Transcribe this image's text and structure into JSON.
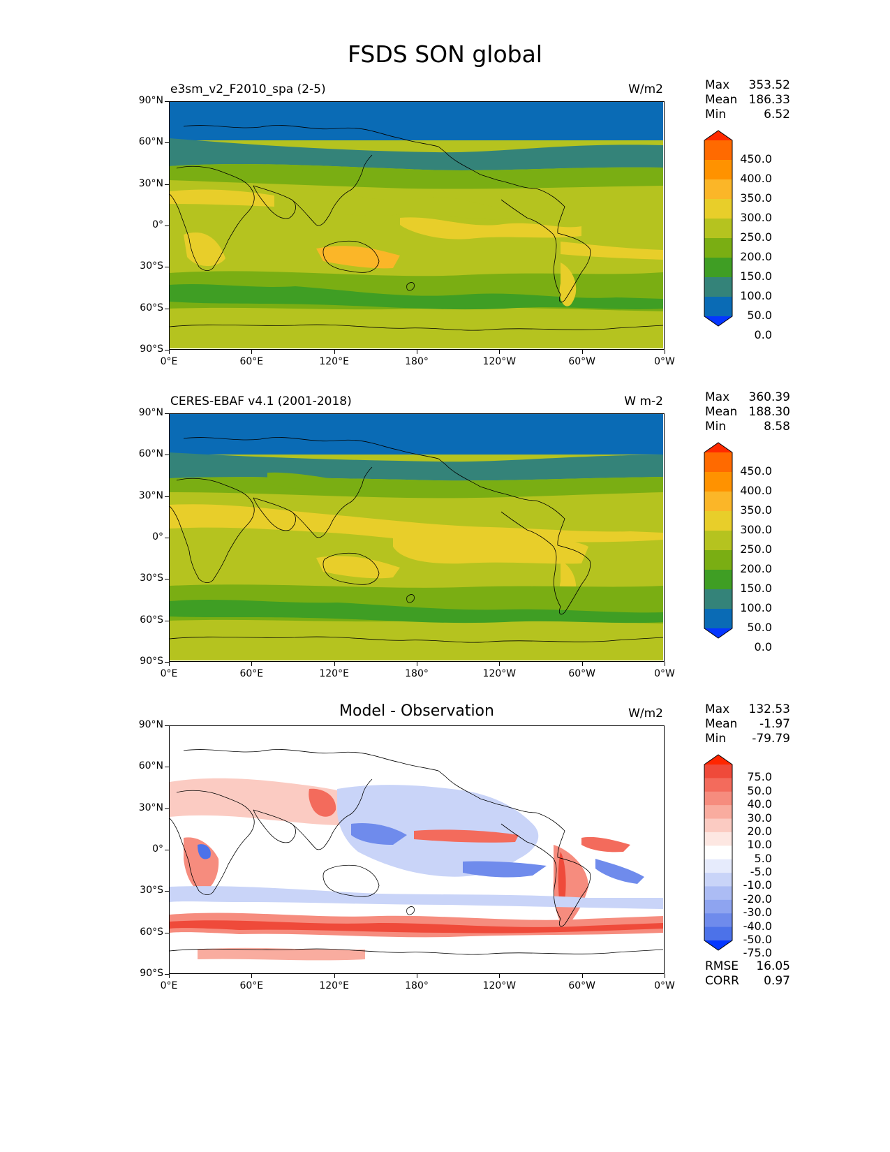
{
  "title": "FSDS SON global",
  "panels": [
    {
      "left": "e3sm_v2_F2010_spa (2-5)",
      "right": "W/m2",
      "center": "",
      "stats": [
        [
          "Max",
          "353.52"
        ],
        [
          "Mean",
          "186.33"
        ],
        [
          "Min",
          "6.52"
        ]
      ]
    },
    {
      "left": "CERES-EBAF v4.1 (2001-2018)",
      "right": "W m-2",
      "center": "",
      "stats": [
        [
          "Max",
          "360.39"
        ],
        [
          "Mean",
          "188.30"
        ],
        [
          "Min",
          "8.58"
        ]
      ]
    },
    {
      "left": "",
      "right": "W/m2",
      "center": "Model - Observation",
      "stats": [
        [
          "Max",
          "132.53"
        ],
        [
          "Mean",
          "-1.97"
        ],
        [
          "Min",
          "-79.79"
        ]
      ],
      "extra": [
        [
          "RMSE",
          "16.05"
        ],
        [
          "CORR",
          "0.97"
        ]
      ]
    }
  ],
  "lat_ticks": [
    "90°N",
    "60°N",
    "30°N",
    "0°",
    "30°S",
    "60°S",
    "90°S"
  ],
  "lon_ticks": [
    "0°E",
    "60°E",
    "120°E",
    "180°",
    "120°W",
    "60°W",
    "0°W"
  ],
  "colorbars": {
    "absolute": {
      "labels": [
        "450.0",
        "400.0",
        "350.0",
        "300.0",
        "250.0",
        "200.0",
        "150.0",
        "100.0",
        "50.0",
        "0.0"
      ],
      "colors": [
        "#ff2a00",
        "#ff6a00",
        "#ff9200",
        "#fbb628",
        "#e8ce2a",
        "#b5c31f",
        "#7aae13",
        "#3f9e24",
        "#348379",
        "#0a6bb5",
        "#0536ff"
      ]
    },
    "difference": {
      "labels": [
        "75.0",
        "50.0",
        "40.0",
        "30.0",
        "20.0",
        "10.0",
        "5.0",
        "-5.0",
        "-10.0",
        "-20.0",
        "-30.0",
        "-40.0",
        "-50.0",
        "-75.0"
      ],
      "colors": [
        "#ff2600",
        "#ef4a3a",
        "#f36b5c",
        "#f68c7e",
        "#f9ac9f",
        "#fbcbc2",
        "#fde7e2",
        "#ffffff",
        "#e6ebfc",
        "#c9d4f8",
        "#acbcf4",
        "#8ea4f0",
        "#6f8bec",
        "#4c72e9",
        "#0537ff"
      ]
    }
  },
  "colors": {
    "ocean_ice_blue": "#0a6bb5",
    "teal": "#348379",
    "green": "#3f9e24",
    "yellow_green": "#b5c31f",
    "yellow": "#e8ce2a"
  }
}
